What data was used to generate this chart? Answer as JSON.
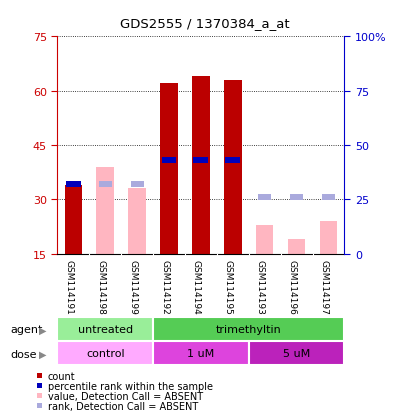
{
  "title": "GDS2555 / 1370384_a_at",
  "samples": [
    "GSM114191",
    "GSM114198",
    "GSM114199",
    "GSM114192",
    "GSM114194",
    "GSM114195",
    "GSM114193",
    "GSM114196",
    "GSM114197"
  ],
  "count_values": [
    34,
    null,
    null,
    62,
    64,
    63,
    null,
    null,
    null
  ],
  "value_absent": [
    null,
    39,
    33,
    null,
    null,
    null,
    23,
    19,
    24
  ],
  "rank_present": [
    32,
    null,
    null,
    43,
    43,
    43,
    null,
    null,
    null
  ],
  "rank_absent": [
    null,
    32,
    32,
    null,
    null,
    null,
    26,
    26,
    26
  ],
  "ylim_left": [
    15,
    75
  ],
  "ylim_right": [
    0,
    100
  ],
  "yticks_left": [
    15,
    30,
    45,
    60,
    75
  ],
  "yticks_right": [
    0,
    25,
    50,
    75,
    100
  ],
  "ytick_labels_right": [
    "0",
    "25",
    "50",
    "75",
    "100%"
  ],
  "agent_groups": [
    {
      "label": "untreated",
      "start": 0,
      "end": 3,
      "color": "#99EE99"
    },
    {
      "label": "trimethyltin",
      "start": 3,
      "end": 9,
      "color": "#55CC55"
    }
  ],
  "dose_colors": [
    "#FFAAFF",
    "#DD44DD",
    "#BB22BB"
  ],
  "dose_groups": [
    {
      "label": "control",
      "start": 0,
      "end": 3,
      "color_idx": 0
    },
    {
      "label": "1 uM",
      "start": 3,
      "end": 6,
      "color_idx": 1
    },
    {
      "label": "5 uM",
      "start": 6,
      "end": 9,
      "color_idx": 2
    }
  ],
  "bar_width": 0.55,
  "count_color": "#BB0000",
  "rank_present_color": "#0000BB",
  "value_absent_color": "#FFB6C1",
  "rank_absent_color": "#AAAADD",
  "plot_bg": "#FFFFFF",
  "label_bg": "#CCCCCC",
  "legend_items": [
    {
      "color": "#BB0000",
      "label": "count"
    },
    {
      "color": "#0000BB",
      "label": "percentile rank within the sample"
    },
    {
      "color": "#FFB6C1",
      "label": "value, Detection Call = ABSENT"
    },
    {
      "color": "#AAAADD",
      "label": "rank, Detection Call = ABSENT"
    }
  ]
}
